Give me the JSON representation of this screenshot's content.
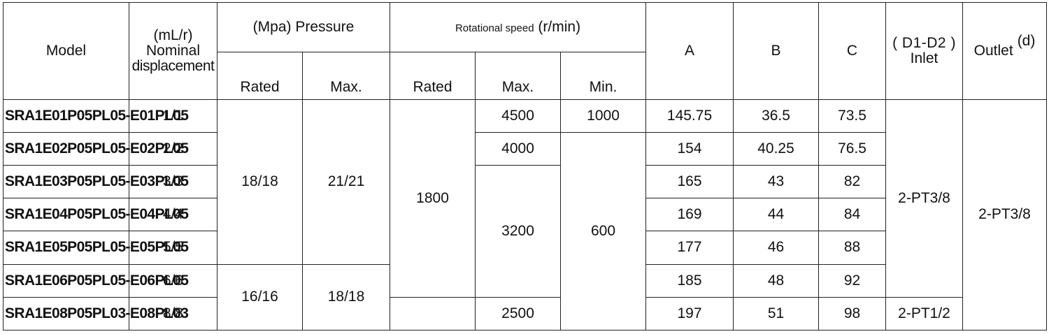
{
  "header": {
    "model": "Model",
    "disp_unit": "(mL/r)",
    "disp_label_1": "Nominal",
    "disp_label_2": "displacement",
    "pressure": "(Mpa) Pressure",
    "speed_small": "Rotational speed",
    "speed_unit": "(r/min)",
    "col_a": "A",
    "col_b": "B",
    "col_c": "C",
    "inlet_top": "( D1-D2 )",
    "inlet_label": "Inlet",
    "outlet_label": "Outlet",
    "outlet_sup": "(d)",
    "rated": "Rated",
    "max": "Max.",
    "min": "Min."
  },
  "rows": [
    {
      "model": "SRA1E01P05PL05-E01PL05",
      "disp": "1/1",
      "a": "145.75",
      "b": "36.5",
      "c": "73.5"
    },
    {
      "model": "SRA1E02P05PL05-E02PL05",
      "disp": "2/2",
      "a": "154",
      "b": "40.25",
      "c": "76.5"
    },
    {
      "model": "SRA1E03P05PL05-E03PL05",
      "disp": "3/3",
      "a": "165",
      "b": "43",
      "c": "82"
    },
    {
      "model": "SRA1E04P05PL05-E04PL05",
      "disp": "4/4",
      "a": "169",
      "b": "44",
      "c": "84"
    },
    {
      "model": "SRA1E05P05PL05-E05PL05",
      "disp": "5/5",
      "a": "177",
      "b": "46",
      "c": "88"
    },
    {
      "model": "SRA1E06P05PL05-E06PL05",
      "disp": "6/6",
      "a": "185",
      "b": "48",
      "c": "92"
    },
    {
      "model": "SRA1E08P05PL03-E08PL03",
      "disp": "8/8",
      "a": "197",
      "b": "51",
      "c": "98"
    }
  ],
  "merged": {
    "p_rated_1": "18/18",
    "p_max_1": "21/21",
    "p_rated_2": "16/16",
    "p_max_2": "18/18",
    "s_rated": "1800",
    "s_max_1": "4500",
    "s_max_2": "4000",
    "s_max_3": "3200",
    "s_max_4": "2500",
    "s_min_1": "1000",
    "s_min_2": "600",
    "inlet_1": "2-PT3/8",
    "inlet_2": "2-PT1/2",
    "outlet": "2-PT3/8"
  }
}
